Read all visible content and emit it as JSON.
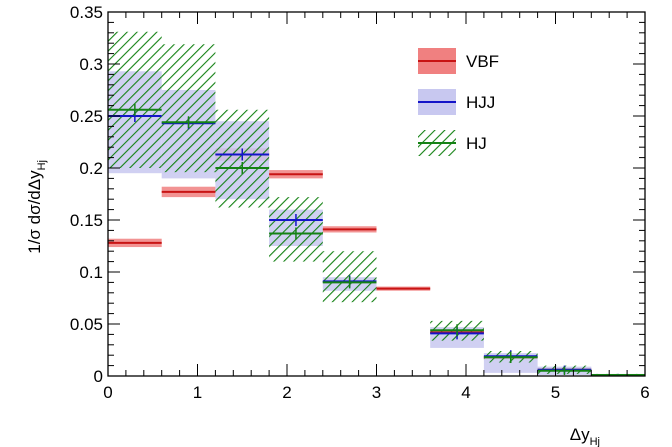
{
  "chart_data": {
    "type": "histogram",
    "x_axis": {
      "label_main": "Δy",
      "label_sub": "Hj",
      "range": [
        0,
        6
      ],
      "ticks": [
        "0",
        "1",
        "2",
        "3",
        "4",
        "5",
        "6"
      ]
    },
    "y_axis": {
      "label_main": "1/σ dσ/dΔy",
      "label_sub": "Hj",
      "range": [
        0,
        0.35
      ],
      "ticks": [
        "0",
        "0.05",
        "0.1",
        "0.15",
        "0.2",
        "0.25",
        "0.3",
        "0.35"
      ]
    },
    "bin_edges": [
      0,
      0.6,
      1.2,
      1.8,
      2.4,
      3.0,
      3.6,
      4.2,
      4.8,
      5.4,
      6.0
    ],
    "legend": {
      "placement": "top-right"
    },
    "series": [
      {
        "name": "VBF",
        "color": "#c81414",
        "band_color": "#f08080",
        "style": "solid-band",
        "values": [
          0.128,
          0.177,
          0.213,
          0.194,
          0.141,
          0.084,
          0.042,
          0.018,
          0.006,
          0.001
        ],
        "band": [
          [
            0.124,
            0.132
          ],
          [
            0.172,
            0.182
          ],
          [
            0.207,
            0.219
          ],
          [
            0.19,
            0.198
          ],
          [
            0.138,
            0.144
          ],
          [
            0.082,
            0.086
          ],
          [
            0.041,
            0.043
          ],
          [
            0.0175,
            0.0185
          ],
          [
            0.0055,
            0.0065
          ],
          [
            0.0008,
            0.0012
          ]
        ]
      },
      {
        "name": "HJJ",
        "color": "#1414c8",
        "band_color": "#c8c8f0",
        "style": "solid-band",
        "values": [
          0.25,
          0.243,
          0.213,
          0.15,
          0.091,
          null,
          0.041,
          0.019,
          0.006,
          0.001
        ],
        "band": [
          [
            0.195,
            0.293
          ],
          [
            0.19,
            0.275
          ],
          [
            0.17,
            0.245
          ],
          [
            0.125,
            0.16
          ],
          [
            0.082,
            0.095
          ],
          [
            null,
            null
          ],
          [
            0.027,
            0.047
          ],
          [
            0.003,
            0.022
          ],
          [
            0.001,
            0.009
          ],
          [
            0.0,
            0.002
          ]
        ]
      },
      {
        "name": "HJ",
        "color": "#148214",
        "band_color": "#148214",
        "style": "hatched-band",
        "values": [
          0.256,
          0.244,
          0.2,
          0.137,
          0.09,
          null,
          0.044,
          0.018,
          0.005,
          0.001
        ],
        "band": [
          [
            0.2,
            0.331
          ],
          [
            0.196,
            0.319
          ],
          [
            0.162,
            0.256
          ],
          [
            0.11,
            0.172
          ],
          [
            0.071,
            0.12
          ],
          [
            null,
            null
          ],
          [
            0.034,
            0.053
          ],
          [
            0.013,
            0.024
          ],
          [
            0.002,
            0.01
          ],
          [
            0.0,
            0.002
          ]
        ]
      }
    ]
  }
}
